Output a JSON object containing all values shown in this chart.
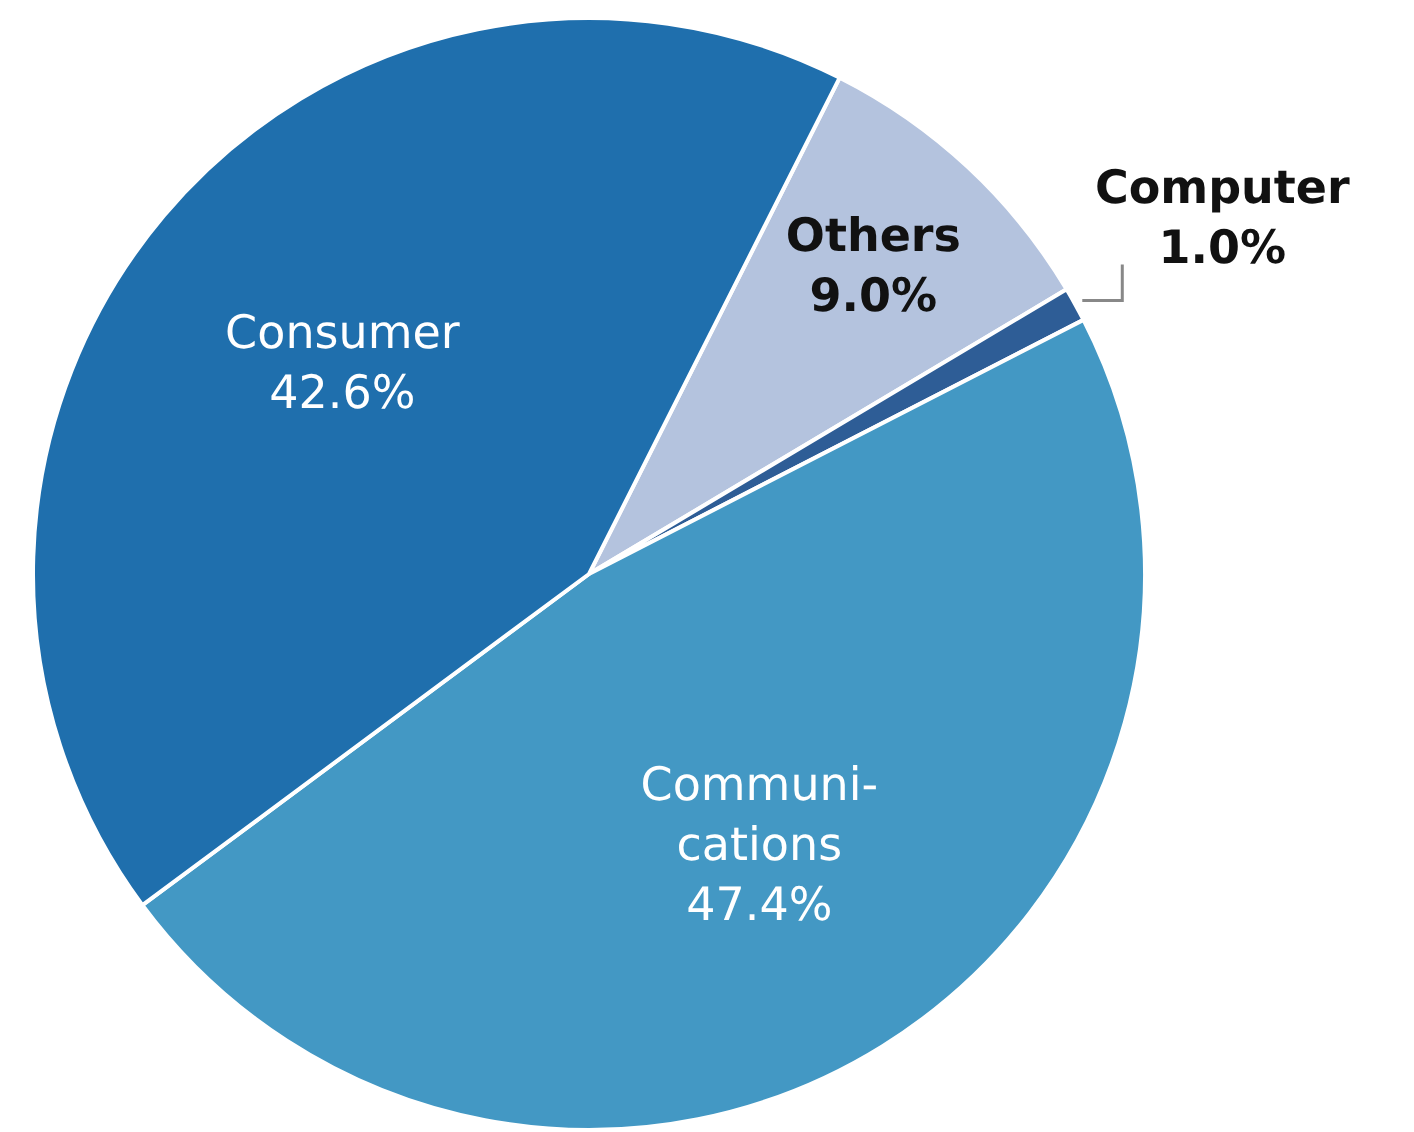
{
  "chart_data": {
    "type": "pie",
    "categories": [
      "Others",
      "Computer",
      "Communi-cations",
      "Consumer"
    ],
    "values": [
      9.0,
      1.0,
      47.4,
      42.6
    ],
    "value_labels": [
      "9.0%",
      "1.0%",
      "47.4%",
      "42.6%"
    ],
    "colors": [
      "#b4c3de",
      "#2e5d96",
      "#4398c4",
      "#1f6fad"
    ],
    "legend": false
  }
}
